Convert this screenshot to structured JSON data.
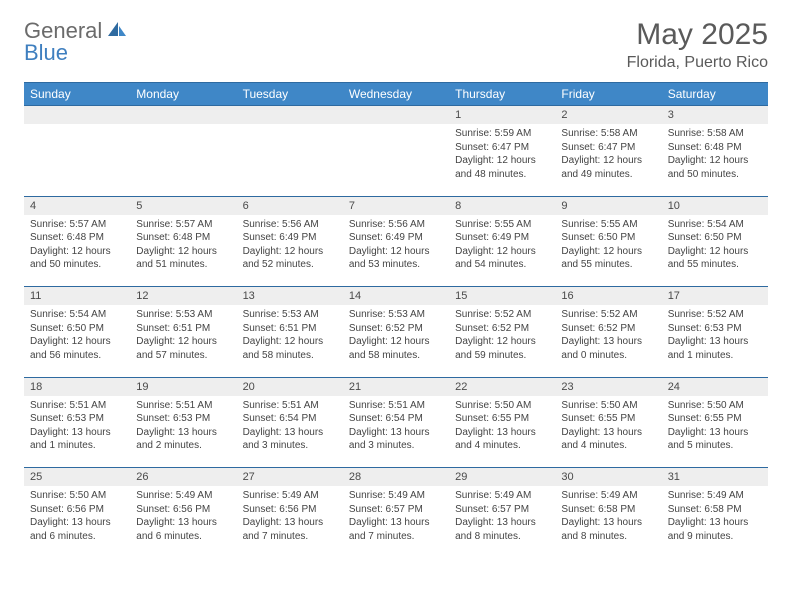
{
  "branding": {
    "word1": "General",
    "word2": "Blue",
    "word1_color": "#6b6b6b",
    "word2_color": "#3f7fbf"
  },
  "title": "May 2025",
  "location": "Florida, Puerto Rico",
  "header_bg": "#3f87c7",
  "header_fg": "#ffffff",
  "grid_line": "#2e6aa0",
  "daynum_bg": "#eeeeee",
  "days_of_week": [
    "Sunday",
    "Monday",
    "Tuesday",
    "Wednesday",
    "Thursday",
    "Friday",
    "Saturday"
  ],
  "weeks": [
    [
      null,
      null,
      null,
      null,
      {
        "n": "1",
        "sr": "5:59 AM",
        "ss": "6:47 PM",
        "dh": "12",
        "dm": "48"
      },
      {
        "n": "2",
        "sr": "5:58 AM",
        "ss": "6:47 PM",
        "dh": "12",
        "dm": "49"
      },
      {
        "n": "3",
        "sr": "5:58 AM",
        "ss": "6:48 PM",
        "dh": "12",
        "dm": "50"
      }
    ],
    [
      {
        "n": "4",
        "sr": "5:57 AM",
        "ss": "6:48 PM",
        "dh": "12",
        "dm": "50"
      },
      {
        "n": "5",
        "sr": "5:57 AM",
        "ss": "6:48 PM",
        "dh": "12",
        "dm": "51"
      },
      {
        "n": "6",
        "sr": "5:56 AM",
        "ss": "6:49 PM",
        "dh": "12",
        "dm": "52"
      },
      {
        "n": "7",
        "sr": "5:56 AM",
        "ss": "6:49 PM",
        "dh": "12",
        "dm": "53"
      },
      {
        "n": "8",
        "sr": "5:55 AM",
        "ss": "6:49 PM",
        "dh": "12",
        "dm": "54"
      },
      {
        "n": "9",
        "sr": "5:55 AM",
        "ss": "6:50 PM",
        "dh": "12",
        "dm": "55"
      },
      {
        "n": "10",
        "sr": "5:54 AM",
        "ss": "6:50 PM",
        "dh": "12",
        "dm": "55"
      }
    ],
    [
      {
        "n": "11",
        "sr": "5:54 AM",
        "ss": "6:50 PM",
        "dh": "12",
        "dm": "56"
      },
      {
        "n": "12",
        "sr": "5:53 AM",
        "ss": "6:51 PM",
        "dh": "12",
        "dm": "57"
      },
      {
        "n": "13",
        "sr": "5:53 AM",
        "ss": "6:51 PM",
        "dh": "12",
        "dm": "58"
      },
      {
        "n": "14",
        "sr": "5:53 AM",
        "ss": "6:52 PM",
        "dh": "12",
        "dm": "58"
      },
      {
        "n": "15",
        "sr": "5:52 AM",
        "ss": "6:52 PM",
        "dh": "12",
        "dm": "59"
      },
      {
        "n": "16",
        "sr": "5:52 AM",
        "ss": "6:52 PM",
        "dh": "13",
        "dm": "0"
      },
      {
        "n": "17",
        "sr": "5:52 AM",
        "ss": "6:53 PM",
        "dh": "13",
        "dm": "1"
      }
    ],
    [
      {
        "n": "18",
        "sr": "5:51 AM",
        "ss": "6:53 PM",
        "dh": "13",
        "dm": "1"
      },
      {
        "n": "19",
        "sr": "5:51 AM",
        "ss": "6:53 PM",
        "dh": "13",
        "dm": "2"
      },
      {
        "n": "20",
        "sr": "5:51 AM",
        "ss": "6:54 PM",
        "dh": "13",
        "dm": "3"
      },
      {
        "n": "21",
        "sr": "5:51 AM",
        "ss": "6:54 PM",
        "dh": "13",
        "dm": "3"
      },
      {
        "n": "22",
        "sr": "5:50 AM",
        "ss": "6:55 PM",
        "dh": "13",
        "dm": "4"
      },
      {
        "n": "23",
        "sr": "5:50 AM",
        "ss": "6:55 PM",
        "dh": "13",
        "dm": "4"
      },
      {
        "n": "24",
        "sr": "5:50 AM",
        "ss": "6:55 PM",
        "dh": "13",
        "dm": "5"
      }
    ],
    [
      {
        "n": "25",
        "sr": "5:50 AM",
        "ss": "6:56 PM",
        "dh": "13",
        "dm": "6"
      },
      {
        "n": "26",
        "sr": "5:49 AM",
        "ss": "6:56 PM",
        "dh": "13",
        "dm": "6"
      },
      {
        "n": "27",
        "sr": "5:49 AM",
        "ss": "6:56 PM",
        "dh": "13",
        "dm": "7"
      },
      {
        "n": "28",
        "sr": "5:49 AM",
        "ss": "6:57 PM",
        "dh": "13",
        "dm": "7"
      },
      {
        "n": "29",
        "sr": "5:49 AM",
        "ss": "6:57 PM",
        "dh": "13",
        "dm": "8"
      },
      {
        "n": "30",
        "sr": "5:49 AM",
        "ss": "6:58 PM",
        "dh": "13",
        "dm": "8"
      },
      {
        "n": "31",
        "sr": "5:49 AM",
        "ss": "6:58 PM",
        "dh": "13",
        "dm": "9"
      }
    ]
  ],
  "labels": {
    "sunrise": "Sunrise:",
    "sunset": "Sunset:",
    "daylight": "Daylight:",
    "hours": "hours",
    "and": "and",
    "minutes": "minutes."
  }
}
